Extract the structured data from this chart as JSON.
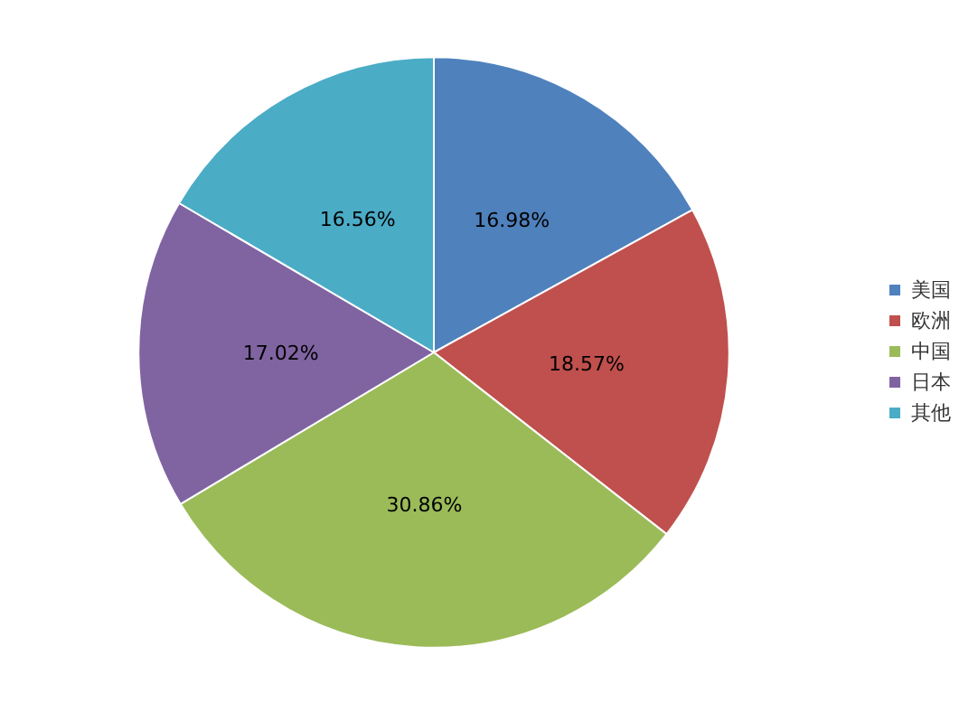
{
  "chart_data": {
    "type": "pie",
    "categories": [
      "美国",
      "欧洲",
      "中国",
      "日本",
      "其他"
    ],
    "values": [
      16.98,
      18.57,
      30.86,
      17.02,
      16.56
    ],
    "colors": [
      "#4f81bd",
      "#c0504d",
      "#9bbb59",
      "#8064a2",
      "#4bacc6"
    ],
    "value_labels": [
      "16.98%",
      "18.57%",
      "30.86%",
      "17.02%",
      "16.56%"
    ],
    "legend": "right"
  }
}
